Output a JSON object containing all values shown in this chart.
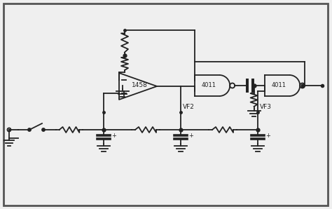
{
  "bg_color": "#efefef",
  "border_color": "#555555",
  "line_color": "#222222",
  "figsize": [
    4.74,
    2.98
  ],
  "dpi": 100,
  "xlim": [
    0,
    474
  ],
  "ylim": [
    0,
    298
  ]
}
